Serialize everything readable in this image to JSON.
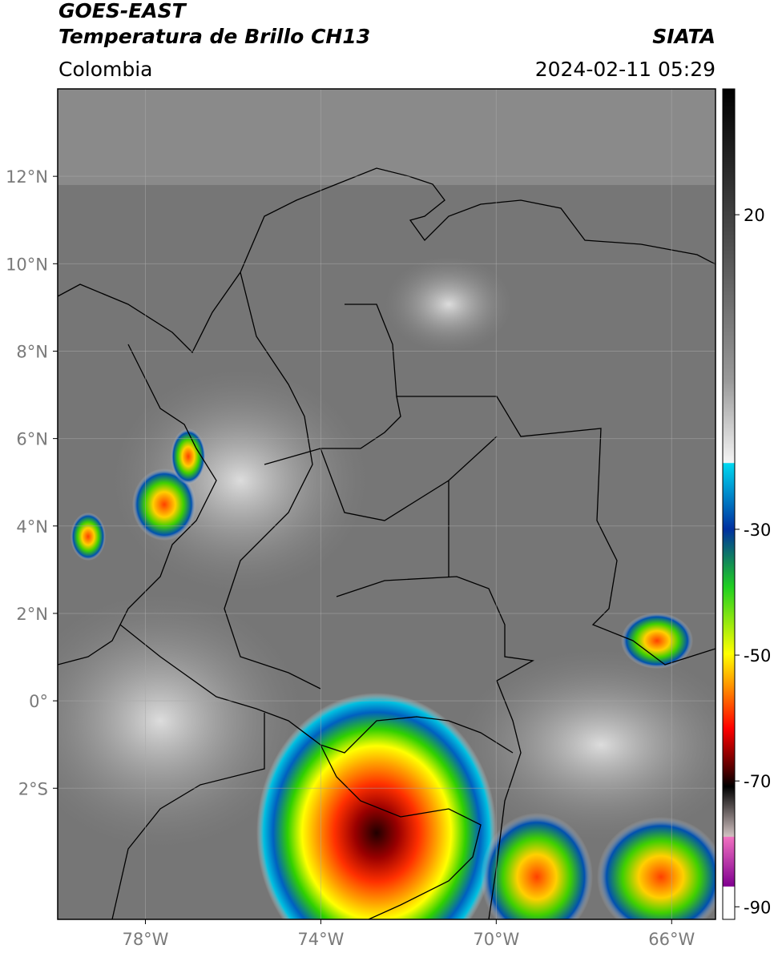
{
  "header": {
    "satellite": "GOES-EAST",
    "product": "Temperatura de Brillo CH13",
    "source": "SIATA",
    "region": "Colombia",
    "datetime": "2024-02-11 05:29"
  },
  "map": {
    "xlim": [
      -80,
      -65
    ],
    "ylim": [
      -5,
      14
    ],
    "xticks": [
      {
        "value": -78,
        "label": "78°W"
      },
      {
        "value": -74,
        "label": "74°W"
      },
      {
        "value": -70,
        "label": "70°W"
      },
      {
        "value": -66,
        "label": "66°W"
      }
    ],
    "yticks": [
      {
        "value": 12,
        "label": "12°N"
      },
      {
        "value": 10,
        "label": "10°N"
      },
      {
        "value": 8,
        "label": "8°N"
      },
      {
        "value": 6,
        "label": "6°N"
      },
      {
        "value": 4,
        "label": "4°N"
      },
      {
        "value": 2,
        "label": "2°N"
      },
      {
        "value": 0,
        "label": "0°"
      },
      {
        "value": -2,
        "label": "2°S"
      }
    ]
  },
  "colorbar": {
    "lim": [
      -92,
      40
    ],
    "ticks": [
      20,
      -30,
      -50,
      -70,
      -90
    ]
  }
}
